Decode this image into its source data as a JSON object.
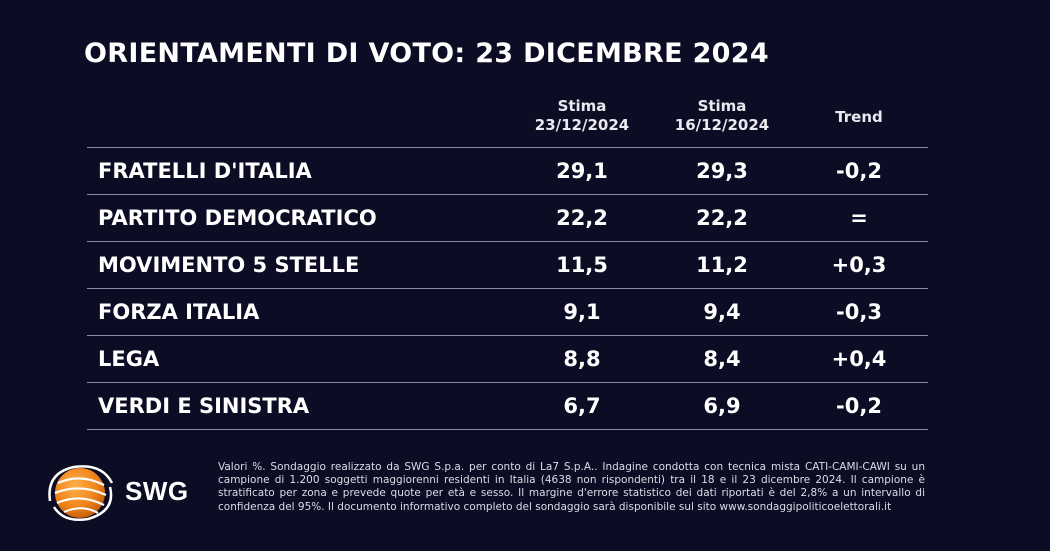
{
  "title": "ORIENTAMENTI DI VOTO: 23 DICEMBRE 2024",
  "chart_data": {
    "type": "table",
    "title": "ORIENTAMENTI DI VOTO: 23 DICEMBRE 2024",
    "columns": [
      {
        "line1": "Stima",
        "line2": "23/12/2024"
      },
      {
        "line1": "Stima",
        "line2": "16/12/2024"
      },
      {
        "line1": "Trend",
        "line2": ""
      }
    ],
    "rows": [
      {
        "party": "FRATELLI D'ITALIA",
        "current": "29,1",
        "previous": "29,3",
        "trend": "-0,2"
      },
      {
        "party": "PARTITO DEMOCRATICO",
        "current": "22,2",
        "previous": "22,2",
        "trend": "="
      },
      {
        "party": "MOVIMENTO 5 STELLE",
        "current": "11,5",
        "previous": "11,2",
        "trend": "+0,3"
      },
      {
        "party": "FORZA ITALIA",
        "current": "9,1",
        "previous": "9,4",
        "trend": "-0,3"
      },
      {
        "party": "LEGA",
        "current": "8,8",
        "previous": "8,4",
        "trend": "+0,4"
      },
      {
        "party": "VERDI E SINISTRA",
        "current": "6,7",
        "previous": "6,9",
        "trend": "-0,2"
      }
    ]
  },
  "logo": {
    "text": "SWG",
    "icon": "swg-globe-icon",
    "colors": {
      "orange": "#f0851c",
      "white": "#ffffff"
    }
  },
  "footnote": "Valori %. Sondaggio realizzato da SWG S.p.a. per conto di La7 S.p.A.. Indagine condotta con tecnica mista CATI-CAMI-CAWI su un campione di 1.200 soggetti maggiorenni residenti in Italia (4638 non rispondenti) tra il 18 e il 23 dicembre 2024. Il campione è stratificato per zona e prevede quote per età e sesso. Il margine d'errore statistico dei dati riportati è del 2,8% a un intervallo di confidenza del 95%. Il documento informativo completo del sondaggio sarà disponibile sul sito www.sondaggipoliticoelettorali.it",
  "colors": {
    "background": "#0c0c24",
    "text": "#ffffff",
    "rule": "#8b8ba3"
  }
}
